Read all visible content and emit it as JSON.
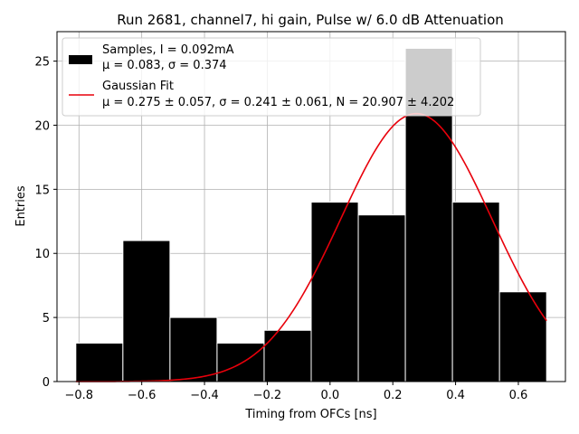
{
  "chart_data": {
    "type": "bar",
    "title": "Run 2681, channel7, hi gain, Pulse w/ 6.0 dB Attenuation",
    "xlabel": "Timing from OFCs [ns]",
    "ylabel": "Entries",
    "xlim": [
      -0.87,
      0.75
    ],
    "ylim": [
      0,
      27.3
    ],
    "grid": true,
    "xticks": [
      -0.8,
      -0.6,
      -0.4,
      -0.2,
      0.0,
      0.2,
      0.4,
      0.6
    ],
    "xtick_labels": [
      "−0.8",
      "−0.6",
      "−0.4",
      "−0.2",
      "0.0",
      "0.2",
      "0.4",
      "0.6"
    ],
    "yticks": [
      0,
      5,
      10,
      15,
      20,
      25
    ],
    "ytick_labels": [
      "0",
      "5",
      "10",
      "15",
      "20",
      "25"
    ],
    "histogram": {
      "name": "Samples",
      "bin_edges": [
        -0.81,
        -0.66,
        -0.51,
        -0.36,
        -0.21,
        -0.06,
        0.09,
        0.24,
        0.39,
        0.54,
        0.69
      ],
      "counts": [
        3,
        11,
        5,
        3,
        4,
        14,
        13,
        26,
        14,
        7
      ],
      "color": "#000000",
      "edge_color": "#ffffff"
    },
    "fit": {
      "name": "Gaussian Fit",
      "mu": 0.275,
      "sigma": 0.241,
      "N": 20.907,
      "x_range": [
        -0.81,
        0.69
      ],
      "color": "#e8000b"
    },
    "legend": {
      "position": "top-left",
      "entries": [
        {
          "line1": "Samples, I = 0.092mA",
          "line2": "μ = 0.083, σ = 0.374"
        },
        {
          "line1": "Gaussian Fit",
          "line2": "μ = 0.275 ± 0.057, σ = 0.241 ± 0.061, N = 20.907 ± 4.202"
        }
      ]
    }
  }
}
